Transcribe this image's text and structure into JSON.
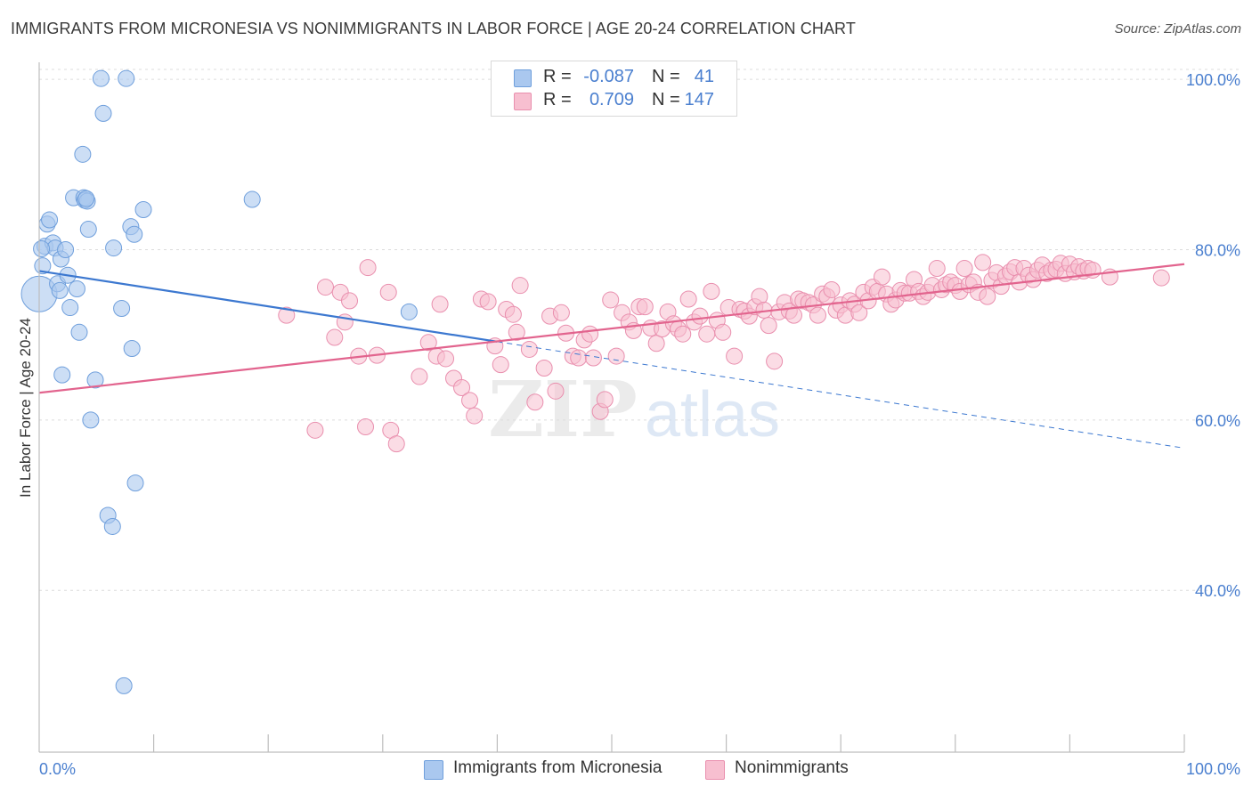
{
  "header": {
    "title": "IMMIGRANTS FROM MICRONESIA VS NONIMMIGRANTS IN LABOR FORCE | AGE 20-24 CORRELATION CHART",
    "source": "Source: ZipAtlas.com"
  },
  "watermark": {
    "zip": "ZIP",
    "atlas": "atlas"
  },
  "colors": {
    "blue_fill": "#aac8ef",
    "blue_stroke": "#6f9fdc",
    "blue_line": "#3c78d0",
    "pink_fill": "#f7bfd0",
    "pink_stroke": "#e98fae",
    "pink_line": "#e2648e",
    "tick_label": "#4a7fcf",
    "grid": "#dcdcdc"
  },
  "legend": {
    "rows": [
      {
        "series": "Immigrants from Micronesia",
        "r_label": "R =",
        "r_value": "-0.087",
        "n_label": "N =",
        "n_value": "41",
        "color": "#aac8ef",
        "border": "#6f9fdc"
      },
      {
        "series": "Nonimmigrants",
        "r_label": "R =",
        "r_value": "0.709",
        "n_label": "N =",
        "n_value": "147",
        "color": "#f7bfd0",
        "border": "#e98fae"
      }
    ]
  },
  "bottom_legend": [
    {
      "label": "Immigrants from Micronesia",
      "color": "#aac8ef",
      "border": "#6f9fdc"
    },
    {
      "label": "Nonimmigrants",
      "color": "#f7bfd0",
      "border": "#e98fae"
    }
  ],
  "chart_data": {
    "type": "scatter",
    "title": "IMMIGRANTS FROM MICRONESIA VS NONIMMIGRANTS IN LABOR FORCE | AGE 20-24 CORRELATION CHART",
    "xlabel": "",
    "ylabel": "In Labor Force | Age 20-24",
    "xlim": [
      0,
      100
    ],
    "ylim": [
      21,
      102
    ],
    "x_tick_labels": [
      "0.0%",
      "100.0%"
    ],
    "y_ticks": [
      40,
      60,
      80,
      100
    ],
    "y_tick_labels": [
      "40.0%",
      "60.0%",
      "80.0%",
      "100.0%"
    ],
    "grid": true,
    "legend_position": "top-center",
    "series": [
      {
        "name": "Immigrants from Micronesia",
        "trend": {
          "x": [
            0,
            40
          ],
          "y": [
            77.5,
            69.2
          ],
          "dashed_extension_to": [
            100,
            56.7
          ]
        },
        "points": [
          [
            0.0,
            74.8
          ],
          [
            0.3,
            78.1
          ],
          [
            0.5,
            80.4
          ],
          [
            0.7,
            83.0
          ],
          [
            0.9,
            83.5
          ],
          [
            1.2,
            80.8
          ],
          [
            1.4,
            80.2
          ],
          [
            1.6,
            76.0
          ],
          [
            1.8,
            75.2
          ],
          [
            1.9,
            78.9
          ],
          [
            2.0,
            65.3
          ],
          [
            2.3,
            80.0
          ],
          [
            2.5,
            77.0
          ],
          [
            2.7,
            73.2
          ],
          [
            3.0,
            86.1
          ],
          [
            3.3,
            75.4
          ],
          [
            3.5,
            70.3
          ],
          [
            3.8,
            91.2
          ],
          [
            3.9,
            86.1
          ],
          [
            4.0,
            85.8
          ],
          [
            4.2,
            85.7
          ],
          [
            4.3,
            82.4
          ],
          [
            4.5,
            60.0
          ],
          [
            4.9,
            64.7
          ],
          [
            5.6,
            96.0
          ],
          [
            5.4,
            100.1
          ],
          [
            6.0,
            48.8
          ],
          [
            6.4,
            47.5
          ],
          [
            6.5,
            80.2
          ],
          [
            7.2,
            73.1
          ],
          [
            7.4,
            28.8
          ],
          [
            7.6,
            100.1
          ],
          [
            8.0,
            82.7
          ],
          [
            8.1,
            68.4
          ],
          [
            8.3,
            81.8
          ],
          [
            8.4,
            52.6
          ],
          [
            9.1,
            84.7
          ],
          [
            18.6,
            85.9
          ],
          [
            32.3,
            72.7
          ],
          [
            0.2,
            80.1
          ],
          [
            4.1,
            86.0
          ]
        ]
      },
      {
        "name": "Nonimmigrants",
        "trend": {
          "x": [
            0,
            100
          ],
          "y": [
            63.2,
            78.3
          ]
        },
        "points": [
          [
            21.6,
            72.3
          ],
          [
            24.1,
            58.8
          ],
          [
            25.0,
            75.6
          ],
          [
            25.8,
            69.7
          ],
          [
            26.3,
            75.0
          ],
          [
            26.7,
            71.5
          ],
          [
            27.1,
            74.0
          ],
          [
            27.9,
            67.5
          ],
          [
            28.5,
            59.2
          ],
          [
            28.7,
            77.9
          ],
          [
            29.5,
            67.6
          ],
          [
            30.5,
            75.0
          ],
          [
            30.7,
            58.8
          ],
          [
            31.2,
            57.2
          ],
          [
            33.2,
            65.1
          ],
          [
            34.0,
            69.1
          ],
          [
            34.7,
            67.5
          ],
          [
            35.0,
            73.6
          ],
          [
            35.5,
            67.2
          ],
          [
            36.2,
            64.9
          ],
          [
            36.9,
            63.8
          ],
          [
            37.6,
            62.3
          ],
          [
            38.0,
            60.5
          ],
          [
            38.6,
            74.2
          ],
          [
            39.2,
            73.9
          ],
          [
            39.8,
            68.7
          ],
          [
            40.3,
            66.5
          ],
          [
            40.8,
            73.0
          ],
          [
            41.4,
            72.4
          ],
          [
            41.7,
            70.3
          ],
          [
            42.0,
            75.8
          ],
          [
            42.8,
            68.3
          ],
          [
            43.3,
            62.1
          ],
          [
            44.1,
            66.1
          ],
          [
            44.6,
            72.2
          ],
          [
            45.1,
            63.4
          ],
          [
            45.6,
            72.6
          ],
          [
            46.0,
            70.2
          ],
          [
            46.6,
            67.5
          ],
          [
            47.1,
            67.3
          ],
          [
            47.6,
            69.4
          ],
          [
            48.1,
            70.1
          ],
          [
            48.4,
            67.3
          ],
          [
            49.0,
            61.0
          ],
          [
            49.4,
            62.4
          ],
          [
            49.9,
            74.1
          ],
          [
            50.4,
            67.5
          ],
          [
            50.9,
            72.6
          ],
          [
            51.5,
            71.5
          ],
          [
            51.9,
            70.5
          ],
          [
            52.4,
            73.3
          ],
          [
            52.9,
            73.3
          ],
          [
            53.4,
            70.8
          ],
          [
            53.9,
            69.0
          ],
          [
            54.4,
            70.7
          ],
          [
            54.9,
            72.7
          ],
          [
            55.4,
            71.3
          ],
          [
            55.8,
            70.7
          ],
          [
            56.2,
            70.1
          ],
          [
            56.7,
            74.2
          ],
          [
            57.2,
            71.5
          ],
          [
            57.7,
            72.2
          ],
          [
            58.3,
            70.1
          ],
          [
            58.7,
            75.1
          ],
          [
            59.2,
            71.7
          ],
          [
            59.7,
            70.3
          ],
          [
            60.2,
            73.2
          ],
          [
            60.7,
            67.5
          ],
          [
            61.2,
            73.0
          ],
          [
            61.6,
            72.8
          ],
          [
            62.0,
            72.2
          ],
          [
            62.5,
            73.3
          ],
          [
            62.9,
            74.5
          ],
          [
            63.3,
            72.9
          ],
          [
            63.7,
            71.1
          ],
          [
            64.2,
            66.9
          ],
          [
            64.6,
            72.7
          ],
          [
            65.1,
            73.8
          ],
          [
            65.5,
            72.8
          ],
          [
            65.9,
            72.3
          ],
          [
            66.3,
            74.2
          ],
          [
            66.7,
            74.0
          ],
          [
            67.2,
            73.8
          ],
          [
            67.6,
            73.5
          ],
          [
            68.0,
            72.3
          ],
          [
            68.4,
            74.8
          ],
          [
            68.8,
            74.5
          ],
          [
            69.2,
            75.3
          ],
          [
            69.6,
            72.9
          ],
          [
            70.0,
            73.5
          ],
          [
            70.4,
            72.3
          ],
          [
            70.8,
            74.0
          ],
          [
            71.2,
            73.6
          ],
          [
            71.6,
            72.6
          ],
          [
            72.0,
            75.0
          ],
          [
            72.4,
            74.0
          ],
          [
            72.8,
            75.6
          ],
          [
            73.2,
            75.1
          ],
          [
            73.6,
            76.8
          ],
          [
            74.0,
            74.8
          ],
          [
            74.4,
            73.6
          ],
          [
            74.8,
            74.1
          ],
          [
            75.2,
            75.2
          ],
          [
            75.6,
            74.9
          ],
          [
            76.0,
            74.9
          ],
          [
            76.4,
            76.5
          ],
          [
            76.8,
            75.1
          ],
          [
            77.2,
            74.5
          ],
          [
            77.6,
            75.0
          ],
          [
            78.0,
            75.8
          ],
          [
            78.4,
            77.8
          ],
          [
            78.8,
            75.3
          ],
          [
            79.2,
            75.9
          ],
          [
            79.6,
            76.2
          ],
          [
            80.0,
            75.8
          ],
          [
            80.4,
            75.1
          ],
          [
            80.8,
            77.8
          ],
          [
            81.2,
            75.9
          ],
          [
            81.6,
            76.2
          ],
          [
            82.0,
            75.0
          ],
          [
            82.4,
            78.5
          ],
          [
            82.8,
            74.5
          ],
          [
            83.2,
            76.4
          ],
          [
            83.6,
            77.3
          ],
          [
            84.0,
            75.7
          ],
          [
            84.4,
            76.9
          ],
          [
            84.8,
            77.4
          ],
          [
            85.2,
            77.9
          ],
          [
            85.6,
            76.2
          ],
          [
            86.0,
            77.8
          ],
          [
            86.4,
            77.0
          ],
          [
            86.8,
            76.5
          ],
          [
            87.2,
            77.6
          ],
          [
            87.6,
            78.2
          ],
          [
            88.0,
            77.2
          ],
          [
            88.4,
            77.6
          ],
          [
            88.8,
            77.7
          ],
          [
            89.2,
            78.4
          ],
          [
            89.6,
            77.2
          ],
          [
            90.0,
            78.3
          ],
          [
            90.4,
            77.4
          ],
          [
            90.8,
            78.0
          ],
          [
            91.2,
            77.5
          ],
          [
            91.6,
            77.8
          ],
          [
            92.0,
            77.6
          ],
          [
            93.5,
            76.8
          ],
          [
            98.0,
            76.7
          ]
        ]
      }
    ]
  }
}
